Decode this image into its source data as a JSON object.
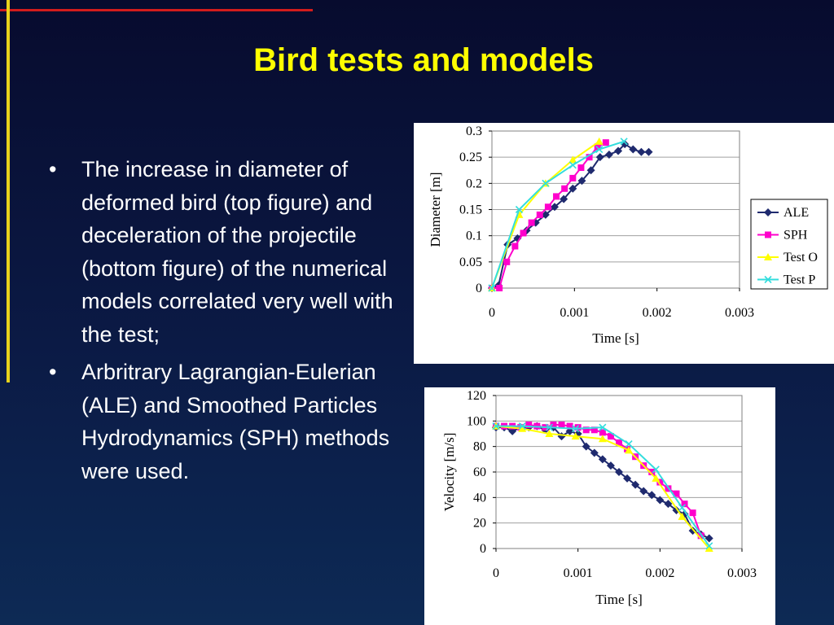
{
  "slide": {
    "title": "Bird tests and models",
    "bullets": [
      "The increase in diameter of deformed bird (top figure) and deceleration of the projectile (bottom figure) of the numerical models correlated very well with the test;",
      "Arbritrary Lagrangian-Eulerian (ALE) and Smoothed Particles Hydrodynamics (SPH) methods were used."
    ],
    "bullet_symbol": "•",
    "colors": {
      "title": "#ffff00",
      "text": "#ffffff",
      "accent_top": "#d21c1c",
      "accent_left": "#e8d21c"
    }
  },
  "chart_data": [
    {
      "type": "line",
      "title": "",
      "xlabel": "Time [s]",
      "ylabel": "Diameter [m]",
      "xlim": [
        0,
        0.003
      ],
      "ylim": [
        0,
        0.3
      ],
      "xticks": [
        "0",
        "0.001",
        "0.002",
        "0.003"
      ],
      "yticks": [
        "0",
        "0.05",
        "0.1",
        "0.15",
        "0.2",
        "0.25",
        "0.3"
      ],
      "xtick_values": [
        0,
        0.001,
        0.002,
        0.003
      ],
      "ytick_values": [
        0,
        0.05,
        0.1,
        0.15,
        0.2,
        0.25,
        0.3
      ],
      "grid": "horizontal",
      "legend": "right",
      "series": [
        {
          "name": "ALE",
          "color": "#1f2a6e",
          "marker": "diamond",
          "x": [
            0,
            8e-05,
            0.00019,
            0.00031,
            0.00042,
            0.00053,
            0.00065,
            0.00076,
            0.00087,
            0.00098,
            0.00109,
            0.0012,
            0.00131,
            0.00142,
            0.00153,
            0.00161,
            0.00171,
            0.00181,
            0.0019
          ],
          "y": [
            0,
            0.005,
            0.083,
            0.095,
            0.11,
            0.125,
            0.14,
            0.155,
            0.17,
            0.19,
            0.205,
            0.225,
            0.25,
            0.255,
            0.262,
            0.275,
            0.265,
            0.26,
            0.26
          ]
        },
        {
          "name": "SPH",
          "color": "#ff00cc",
          "marker": "square",
          "x": [
            0,
            9e-05,
            0.00018,
            0.00028,
            0.00038,
            0.00048,
            0.00058,
            0.00068,
            0.00078,
            0.00088,
            0.00098,
            0.00108,
            0.00118,
            0.00128,
            0.00138
          ],
          "y": [
            0,
            0,
            0.05,
            0.08,
            0.105,
            0.125,
            0.14,
            0.155,
            0.175,
            0.19,
            0.21,
            0.23,
            0.25,
            0.27,
            0.278
          ]
        },
        {
          "name": "Test O",
          "color": "#ffff00",
          "marker": "triangle",
          "x": [
            0,
            0.00033,
            0.00065,
            0.00098,
            0.0013
          ],
          "y": [
            0,
            0.14,
            0.2,
            0.245,
            0.28
          ]
        },
        {
          "name": "Test P",
          "color": "#33dddd",
          "marker": "x",
          "x": [
            0,
            0.00033,
            0.00065,
            0.00098,
            0.0013,
            0.0016
          ],
          "y": [
            0,
            0.15,
            0.2,
            0.235,
            0.265,
            0.28
          ]
        }
      ]
    },
    {
      "type": "line",
      "title": "",
      "xlabel": "Time [s]",
      "ylabel": "Velocity [m/s]",
      "xlim": [
        0,
        0.003
      ],
      "ylim": [
        0,
        120
      ],
      "xticks": [
        "0",
        "0.001",
        "0.002",
        "0.003"
      ],
      "yticks": [
        "0",
        "20",
        "40",
        "60",
        "80",
        "100",
        "120"
      ],
      "xtick_values": [
        0,
        0.001,
        0.002,
        0.003
      ],
      "ytick_values": [
        0,
        20,
        40,
        60,
        80,
        100,
        120
      ],
      "grid": "horizontal",
      "legend": "none",
      "series": [
        {
          "name": "ALE",
          "color": "#1f2a6e",
          "marker": "diamond",
          "x": [
            0,
            0.0001,
            0.0002,
            0.0003,
            0.0004,
            0.0005,
            0.0006,
            0.0007,
            0.0008,
            0.0009,
            0.001,
            0.0011,
            0.0012,
            0.0013,
            0.0014,
            0.0015,
            0.0016,
            0.0017,
            0.0018,
            0.0019,
            0.002,
            0.0021,
            0.0022,
            0.0023,
            0.0024,
            0.0025,
            0.0026
          ],
          "y": [
            95,
            95,
            92,
            95,
            95,
            96,
            93,
            95,
            88,
            92,
            90,
            80,
            75,
            70,
            65,
            60,
            55,
            50,
            45,
            42,
            38,
            35,
            30,
            27,
            14,
            11,
            8
          ]
        },
        {
          "name": "SPH",
          "color": "#ff00cc",
          "marker": "square",
          "x": [
            0,
            0.0001,
            0.0002,
            0.0003,
            0.0004,
            0.0005,
            0.0006,
            0.0007,
            0.0008,
            0.0009,
            0.001,
            0.0011,
            0.0012,
            0.0013,
            0.0014,
            0.0015,
            0.0016,
            0.0017,
            0.0018,
            0.0019,
            0.002,
            0.0021,
            0.0022,
            0.0023,
            0.0024,
            0.0025
          ],
          "y": [
            96,
            96,
            96,
            95,
            97,
            96,
            95,
            97,
            97,
            96,
            95,
            93,
            93,
            91,
            88,
            83,
            78,
            72,
            65,
            60,
            52,
            47,
            43,
            35,
            28,
            10
          ]
        },
        {
          "name": "Test O",
          "color": "#ffff00",
          "marker": "triangle",
          "x": [
            0,
            0.00032,
            0.00065,
            0.00097,
            0.0013,
            0.00162,
            0.00195,
            0.00227,
            0.0026
          ],
          "y": [
            96,
            94,
            90,
            88,
            86,
            77,
            55,
            25,
            0
          ]
        },
        {
          "name": "Test P",
          "color": "#33dddd",
          "marker": "x",
          "x": [
            0,
            0.00032,
            0.00065,
            0.00097,
            0.0013,
            0.00162,
            0.00195,
            0.00227,
            0.0026
          ],
          "y": [
            96,
            96,
            95,
            94,
            95,
            82,
            62,
            32,
            2
          ]
        }
      ]
    }
  ]
}
